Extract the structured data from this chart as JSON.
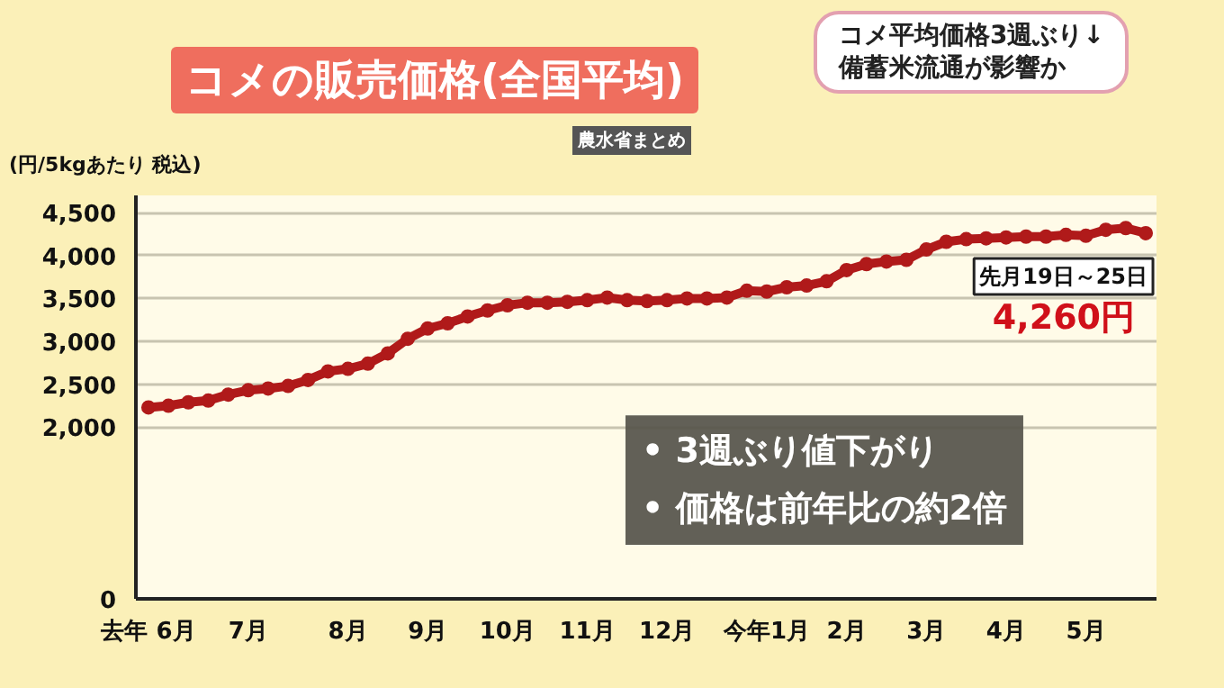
{
  "chart_data": {
    "type": "line",
    "title": "コメの販売価格(全国平均)",
    "ylabel": "(円/5kgあたり 税込)",
    "annotations": [
      "農水省まとめ",
      "コメ平均価格3週ぶり↓",
      "備蓄米流通が影響か",
      "• 3週ぶり値下がり",
      "• 価格は前年比の約2倍",
      {
        "text": "先月19日～25日\n4,260円",
        "y": 4260
      }
    ],
    "categories": [
      "去年 6月",
      null,
      null,
      null,
      null,
      "7月",
      null,
      null,
      null,
      null,
      "8月",
      null,
      null,
      null,
      "9月",
      null,
      null,
      null,
      "10月",
      null,
      null,
      null,
      "11月",
      null,
      null,
      null,
      "12月",
      null,
      null,
      null,
      null,
      "今年1月",
      null,
      null,
      null,
      "2月",
      null,
      null,
      null,
      "3月",
      null,
      null,
      null,
      "4月",
      null,
      null,
      null,
      "5月",
      null,
      null,
      null
    ],
    "series": [
      {
        "color": "#b01a1a",
        "values": [
          2230,
          2250,
          2290,
          2310,
          2380,
          2430,
          2450,
          2480,
          2550,
          2650,
          2680,
          2740,
          2860,
          3030,
          3150,
          3210,
          3290,
          3360,
          3420,
          3450,
          3450,
          3460,
          3480,
          3510,
          3480,
          3470,
          3480,
          3500,
          3500,
          3510,
          3590,
          3580,
          3630,
          3650,
          3700,
          3830,
          3900,
          3930,
          3950,
          4070,
          4160,
          4190,
          4200,
          4210,
          4220,
          4220,
          4240,
          4230,
          4300,
          4320,
          4260
        ]
      }
    ],
    "ylim": [
      0,
      4700
    ],
    "yticks": [
      0,
      {
        "value": 2000,
        "label": "2,000"
      },
      {
        "value": 2500,
        "label": "2,500"
      },
      {
        "value": 3000,
        "label": "3,000"
      },
      {
        "value": 3500,
        "label": "3,500"
      },
      {
        "value": 4000,
        "label": "4,000"
      },
      {
        "value": 4500,
        "label": "4,500"
      }
    ],
    "grid": "y",
    "marker": "circle",
    "line_style": "solid"
  }
}
